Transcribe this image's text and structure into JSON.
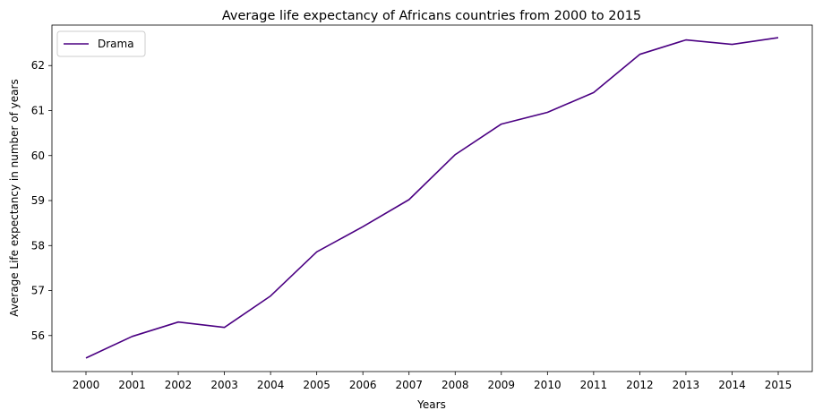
{
  "chart_data": {
    "type": "line",
    "title": "Average life expectancy of Africans countries from 2000 to 2015",
    "xlabel": "Years",
    "ylabel": "Average Life expectancy in number of years",
    "categories": [
      "2000",
      "2001",
      "2002",
      "2003",
      "2004",
      "2005",
      "2006",
      "2007",
      "2008",
      "2009",
      "2010",
      "2011",
      "2012",
      "2013",
      "2014",
      "2015"
    ],
    "series": [
      {
        "name": "Drama",
        "color": "#4b0082",
        "values": [
          55.5,
          55.98,
          56.3,
          56.18,
          56.88,
          57.86,
          58.42,
          59.02,
          60.02,
          60.7,
          60.96,
          61.4,
          62.25,
          62.57,
          62.47,
          62.62
        ]
      }
    ],
    "yticks": [
      "56",
      "57",
      "58",
      "59",
      "60",
      "61",
      "62"
    ],
    "ylim": [
      55.2,
      62.9
    ],
    "grid": false,
    "legend": "top-left"
  }
}
